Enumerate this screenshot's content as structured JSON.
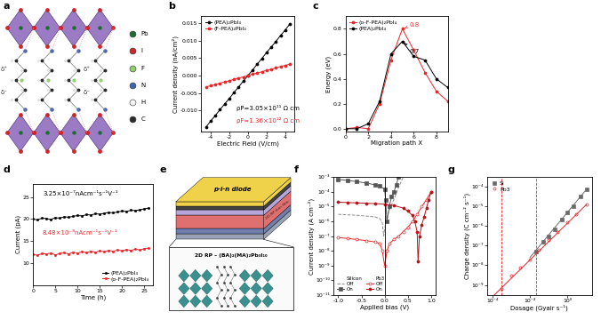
{
  "chart_data": [
    {
      "panel": "b",
      "type": "line",
      "x": [
        -4.5,
        -4,
        -3.5,
        -3,
        -2.5,
        -2,
        -1.5,
        -1,
        -0.5,
        0,
        0.5,
        1,
        1.5,
        2,
        2.5,
        3,
        3.5,
        4,
        4.5
      ],
      "series": [
        {
          "name": "(PEA)₂PbI₄",
          "color": "#000000",
          "marker": "circle",
          "line_style": "solid",
          "values": [
            -0.0148,
            -0.0131,
            -0.0115,
            -0.0098,
            -0.0082,
            -0.0066,
            -0.0049,
            -0.0033,
            -0.0016,
            0.0,
            0.0016,
            0.0033,
            0.0049,
            0.0066,
            0.0082,
            0.0098,
            0.0115,
            0.0131,
            0.0148
          ]
        },
        {
          "name": "(F-PEA)₂PbI₄",
          "color": "#e8262a",
          "marker": "circle",
          "line_style": "solid",
          "values": [
            -0.0033,
            -0.0029,
            -0.0026,
            -0.0022,
            -0.0018,
            -0.0015,
            -0.0011,
            -0.0007,
            -0.0004,
            0.0,
            0.0004,
            0.0007,
            0.0011,
            0.0015,
            0.0018,
            0.0022,
            0.0026,
            0.0029,
            0.0033
          ]
        }
      ],
      "x_label": "Electric Field (V/cm)",
      "y_label": "Current density (nA/cm²)",
      "xlim": [
        -5,
        5
      ],
      "xticks": [
        -4,
        -2,
        0,
        2,
        4
      ],
      "ylim": [
        -0.016,
        0.017
      ],
      "yticks": [
        {
          "value": -0.01,
          "label": "-0.010"
        },
        {
          "value": -0.005,
          "label": "-0.005"
        },
        {
          "value": 0.0,
          "label": "0.000"
        },
        {
          "value": 0.005,
          "label": "0.005"
        },
        {
          "value": 0.01,
          "label": "0.010"
        },
        {
          "value": 0.015,
          "label": "0.015"
        }
      ],
      "legend": "upper left",
      "annotations": [
        {
          "text": "ρP=3.05×10¹¹ Ω cm",
          "color": "#000000"
        },
        {
          "text": "ρF=1.36×10¹² Ω cm",
          "color": "#e8262a"
        }
      ]
    },
    {
      "panel": "c",
      "type": "line",
      "x": [
        0,
        1,
        2,
        3,
        4,
        5,
        6,
        7,
        8,
        9
      ],
      "series": [
        {
          "name": "(o-F-PEA)₂PbI₄",
          "color": "#e8262a",
          "marker": "circle",
          "line_style": "solid",
          "values": [
            0.0,
            0.01,
            0.0,
            0.2,
            0.55,
            0.8,
            0.63,
            0.45,
            0.3,
            0.22
          ],
          "peak_label": "0.8"
        },
        {
          "name": "(PEA)₂PbI₄",
          "color": "#000000",
          "marker": "circle",
          "line_style": "solid",
          "values": [
            0.0,
            0.0,
            0.04,
            0.22,
            0.6,
            0.7,
            0.58,
            0.55,
            0.4,
            0.33
          ],
          "peak_label": "0.7"
        }
      ],
      "x_label": "Migration path X",
      "y_label": "Energy (eV)",
      "xlim": [
        0,
        9
      ],
      "xticks": [
        0,
        2,
        4,
        6,
        8
      ],
      "ylim": [
        -0.02,
        0.9
      ],
      "yticks": [
        {
          "value": 0.0,
          "label": "0.0"
        },
        {
          "value": 0.2,
          "label": "0.2"
        },
        {
          "value": 0.4,
          "label": "0.4"
        },
        {
          "value": 0.6,
          "label": "0.6"
        },
        {
          "value": 0.8,
          "label": "0.8"
        }
      ],
      "legend": "upper left"
    },
    {
      "panel": "d",
      "type": "line",
      "x": [
        0,
        1,
        2,
        3,
        4,
        5,
        6,
        7,
        8,
        9,
        10,
        11,
        12,
        13,
        14,
        15,
        16,
        17,
        18,
        19,
        20,
        21,
        22,
        23,
        24,
        25,
        26
      ],
      "series": [
        {
          "name": "(PEA)₂PbI₄",
          "color": "#000000",
          "marker": "circle",
          "line_style": "solid",
          "values": [
            20.0,
            19.8,
            20.2,
            20.1,
            19.9,
            20.3,
            20.2,
            20.5,
            20.4,
            20.6,
            20.8,
            20.7,
            21.0,
            20.9,
            21.2,
            21.1,
            21.3,
            21.5,
            21.4,
            21.6,
            21.8,
            21.7,
            22.0,
            21.9,
            22.1,
            22.3,
            22.5
          ]
        },
        {
          "name": "(o-F-PEA)₂PbI₄",
          "color": "#e8262a",
          "marker": "circle",
          "line_style": "solid",
          "values": [
            12.0,
            11.8,
            12.2,
            12.1,
            12.3,
            11.9,
            12.2,
            12.4,
            12.1,
            12.5,
            12.3,
            12.6,
            12.4,
            12.7,
            12.5,
            12.8,
            12.6,
            12.9,
            12.7,
            13.0,
            12.8,
            13.1,
            12.9,
            13.2,
            13.0,
            13.3,
            13.4
          ]
        }
      ],
      "x_label": "Time (h)",
      "y_label": "Current (pA)",
      "xlim": [
        0,
        27
      ],
      "xticks": [
        0,
        5,
        10,
        15,
        20,
        25
      ],
      "ylim": [
        5,
        28
      ],
      "yticks": [
        10,
        15,
        20,
        25
      ],
      "legend": "lower right",
      "annotations": [
        {
          "text": "3.25×10⁻⁷nAcm⁻¹s⁻¹V⁻¹",
          "color": "#000000"
        },
        {
          "text": "8.48×10⁻⁸nAcm⁻¹s⁻¹V⁻¹",
          "color": "#e8262a"
        }
      ]
    },
    {
      "panel": "f",
      "type": "line",
      "log": "y",
      "series": [
        {
          "group": "Silicon",
          "name": "Off",
          "color": "#8c8c8c",
          "marker": "none",
          "line_style": "dashed",
          "x": [
            -1.0,
            -0.8,
            -0.6,
            -0.4,
            -0.2,
            -0.1,
            -0.05,
            -0.02,
            0.0,
            0.05,
            0.1,
            0.2,
            0.3,
            0.4
          ],
          "values": [
            3e-06,
            2.8e-06,
            2.6e-06,
            2.3e-06,
            2e-06,
            1.5e-06,
            8e-07,
            1e-07,
            3e-07,
            2e-06,
            6e-06,
            3e-05,
            0.0002,
            0.001
          ]
        },
        {
          "group": "Silicon",
          "name": "On",
          "color": "#555555",
          "marker": "square",
          "line_style": "solid",
          "x": [
            -1.0,
            -0.8,
            -0.6,
            -0.4,
            -0.2,
            -0.1,
            0.0,
            0.02,
            0.05,
            0.1,
            0.15,
            0.2,
            0.25,
            0.3
          ],
          "values": [
            0.0007,
            0.0006,
            0.0005,
            0.0004,
            0.0003,
            0.00025,
            0.00015,
            3e-05,
            1e-06,
            1e-05,
            5e-05,
            0.0001,
            0.0003,
            0.001
          ]
        },
        {
          "group": "Pb3",
          "name": "Off",
          "color": "#e8262a",
          "marker": "open_circle",
          "line_style": "solid",
          "x": [
            -1.0,
            -0.8,
            -0.6,
            -0.4,
            -0.2,
            -0.1,
            -0.05,
            0.0,
            0.05,
            0.1,
            0.2,
            0.3,
            0.4,
            0.5,
            0.6,
            0.7,
            0.8,
            0.9,
            1.0
          ],
          "values": [
            8e-08,
            7e-08,
            6e-08,
            5e-08,
            4e-08,
            3e-08,
            1e-08,
            1e-09,
            1e-08,
            3e-08,
            6e-08,
            1e-07,
            2e-07,
            4e-07,
            1e-06,
            3e-06,
            1e-05,
            3e-05,
            0.0001
          ]
        },
        {
          "group": "Pb3",
          "name": "On",
          "color": "#b5121b",
          "marker": "circle",
          "line_style": "solid",
          "x": [
            -1.0,
            -0.8,
            -0.6,
            -0.4,
            -0.2,
            0.0,
            0.2,
            0.4,
            0.5,
            0.6,
            0.65,
            0.7,
            0.72,
            0.75,
            0.8,
            0.85,
            0.9,
            0.95,
            1.0
          ],
          "values": [
            2e-05,
            1.9e-05,
            1.8e-05,
            1.7e-05,
            1.6e-05,
            1.5e-05,
            1.2e-05,
            8e-06,
            5e-06,
            2.5e-06,
            1e-06,
            2e-07,
            2e-09,
            1e-07,
            6e-07,
            2e-06,
            8e-06,
            3e-05,
            0.0001
          ]
        }
      ],
      "x_label": "Applied bias (V)",
      "y_label": "Current density (A cm⁻²)",
      "xlim": [
        -1.1,
        1.1
      ],
      "xticks": [
        {
          "value": -1.0,
          "label": "-1.0"
        },
        {
          "value": -0.5,
          "label": "-0.5"
        },
        {
          "value": 0.0,
          "label": "0.0"
        },
        {
          "value": 0.5,
          "label": "0.5"
        },
        {
          "value": 1.0,
          "label": "1.0"
        }
      ],
      "ylim": [
        1e-11,
        0.001
      ],
      "yticks": [
        {
          "value": 1e-11,
          "label": "10⁻¹¹"
        },
        {
          "value": 1e-10,
          "label": "10⁻¹⁰"
        },
        {
          "value": 1e-09,
          "label": "10⁻⁹"
        },
        {
          "value": 1e-08,
          "label": "10⁻⁸"
        },
        {
          "value": 1e-07,
          "label": "10⁻⁷"
        },
        {
          "value": 1e-06,
          "label": "10⁻⁶"
        },
        {
          "value": 1e-05,
          "label": "10⁻⁵"
        },
        {
          "value": 0.0001,
          "label": "10⁻⁴"
        },
        {
          "value": 0.001,
          "label": "10⁻³"
        }
      ],
      "legend": "lower left",
      "reference_lines": {
        "x": [
          0.0
        ],
        "color": "#000000",
        "line_style": "solid"
      }
    },
    {
      "panel": "g",
      "type": "scatter",
      "log": true,
      "series": [
        {
          "name": "Si",
          "color": "#6b6b6b",
          "marker": "square",
          "line_style": "none",
          "x": [
            0.02,
            0.05,
            0.1,
            0.2,
            0.5,
            1,
            2,
            5,
            10
          ],
          "values": [
            5e-08,
            1.5e-07,
            3e-07,
            7e-07,
            2e-06,
            5e-06,
            1e-05,
            3e-05,
            7e-05
          ],
          "fit": {
            "x": [
              0.01,
              10
            ],
            "values": [
              2.5e-08,
              7e-05
            ]
          }
        },
        {
          "name": "Pb3",
          "color": "#e8262a",
          "marker": "open_circle",
          "line_style": "none",
          "x": [
            0.0003,
            0.001,
            0.003,
            0.01,
            0.03,
            0.1,
            0.3,
            1,
            3,
            10
          ],
          "values": [
            6e-10,
            3e-09,
            8e-09,
            2e-08,
            6e-08,
            2e-07,
            5e-07,
            1.5e-06,
            4e-06,
            1.2e-05
          ],
          "fit": {
            "x": [
              0.0001,
              10
            ],
            "values": [
              2.5e-10,
              1.2e-05
            ]
          }
        }
      ],
      "x_label": "Dosage (Gyair s⁻¹)",
      "y_label": "Charge density (C cm⁻² s⁻¹)",
      "xlim": [
        5e-05,
        20
      ],
      "xticks": [
        {
          "value": 0.0001,
          "label": "10⁻⁴"
        },
        {
          "value": 0.01,
          "label": "10⁻²"
        },
        {
          "value": 1,
          "label": "10⁰"
        }
      ],
      "ylim": [
        3e-10,
        0.0003
      ],
      "yticks": [
        {
          "value": 1e-09,
          "label": "10⁻⁹"
        },
        {
          "value": 1e-08,
          "label": "10⁻⁸"
        },
        {
          "value": 1e-07,
          "label": "10⁻⁷"
        },
        {
          "value": 1e-06,
          "label": "10⁻⁶"
        },
        {
          "value": 1e-05,
          "label": "10⁻⁵"
        },
        {
          "value": 0.0001,
          "label": "10⁻⁴"
        }
      ],
      "legend": "upper left",
      "reference_lines": {
        "x": [
          0.0003,
          0.02
        ],
        "color": "#e8262a",
        "line_style": "dashed"
      }
    }
  ],
  "diagrams": {
    "a": {
      "panel": "a",
      "atoms": [
        {
          "name": "Pb",
          "color": "#1e6b34"
        },
        {
          "name": "I",
          "color": "#d0232a"
        },
        {
          "name": "F",
          "color": "#8fd16a"
        },
        {
          "name": "N",
          "color": "#3f64b0"
        },
        {
          "name": "H",
          "color": "#f4f4f4"
        },
        {
          "name": "C",
          "color": "#2b2b2b"
        }
      ],
      "charges": [
        "δ⁺",
        "δ⁻",
        "δ⁺",
        "δ⁻"
      ]
    },
    "e": {
      "panel": "e",
      "device_label": "p-i-n diode",
      "film_label": "2D RP thin film",
      "inset_label": "2D RP – (BA)₂(MA)₂Pb₃I₁₀"
    }
  }
}
